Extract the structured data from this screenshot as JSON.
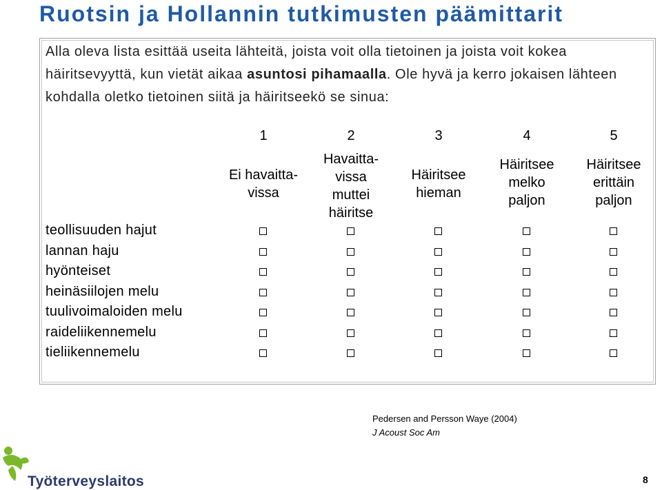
{
  "title": "Ruotsin ja Hollannin tutkimusten päämittarit",
  "intro": {
    "part1": "Alla oleva lista esittää useita lähteitä, joista voit olla tietoinen ja joista voit kokea häiritsevyyttä, kun vietät aikaa ",
    "emphasis": "asuntosi pihamaalla",
    "part2": ". Ole hyvä ja kerro jokaisen lähteen kohdalla oletko tietoinen siitä ja häiritseekö se sinua:"
  },
  "scale": [
    {
      "number": "1",
      "label_lines": [
        "Ei havaitta-",
        "vissa"
      ]
    },
    {
      "number": "2",
      "label_lines": [
        "Havaitta-",
        "vissa",
        "muttei",
        "häiritse"
      ]
    },
    {
      "number": "3",
      "label_lines": [
        "Häiritsee",
        "hieman"
      ]
    },
    {
      "number": "4",
      "label_lines": [
        "Häiritsee",
        "melko",
        "paljon"
      ]
    },
    {
      "number": "5",
      "label_lines": [
        "Häiritsee",
        "erittäin",
        "paljon"
      ]
    }
  ],
  "rows": [
    "teollisuuden hajut",
    "lannan haju",
    "hyönteiset",
    "heinäsiilojen melu",
    "tuulivoimaloiden melu",
    "raideliikennemelu",
    "tieliikennemelu"
  ],
  "citation": {
    "authors": "Pedersen and Persson Waye (2004)",
    "journal": "J Acoust Soc Am"
  },
  "footer": {
    "logo_text": "Työterveyslaitos",
    "page_number": "8",
    "logo_icon": "leaf-figure-icon",
    "logo_color": "#7ab929",
    "logo_text_color": "#2b3a6b"
  },
  "colors": {
    "title": "#1f5aa6"
  }
}
